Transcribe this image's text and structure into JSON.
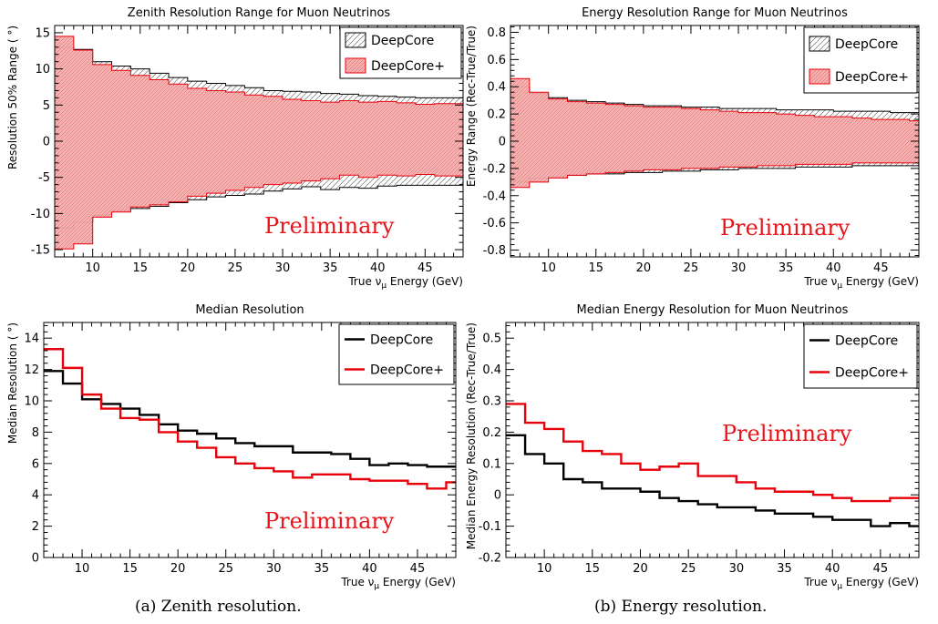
{
  "captions": [
    "(a) Zenith resolution.",
    "(b) Energy resolution."
  ],
  "colors": {
    "deepcore": "#000000",
    "deepcore_plus": "#e8000b",
    "band_plus_fill": "#f4a5a5",
    "preliminary": "#e8141a"
  },
  "chart_data": [
    {
      "type": "area",
      "title": "Zenith Resolution Range for Muon Neutrinos",
      "xlabel": "True ν_μ Energy (GeV)",
      "ylabel": "Resolution 50% Range ( °)",
      "xlim": [
        6,
        49
      ],
      "ylim": [
        -16,
        16
      ],
      "xticks": [
        10,
        15,
        20,
        25,
        30,
        35,
        40,
        45
      ],
      "yticks": [
        -15,
        -10,
        -5,
        0,
        5,
        10,
        15
      ],
      "annotation": "Preliminary",
      "legend": "top-right",
      "bin_edges": [
        6,
        8,
        10,
        12,
        14,
        16,
        18,
        20,
        22,
        24,
        26,
        28,
        30,
        32,
        34,
        36,
        38,
        40,
        42,
        44,
        46,
        48,
        49
      ],
      "series": [
        {
          "name": "DeepCore",
          "style": "hatch-black",
          "upper": [
            13.0,
            12.7,
            11.0,
            10.4,
            10.0,
            9.4,
            8.8,
            8.3,
            8.0,
            7.7,
            7.4,
            7.0,
            6.9,
            6.8,
            6.6,
            6.5,
            6.3,
            6.2,
            6.1,
            6.0,
            6.0,
            6.0
          ],
          "lower": [
            -12.0,
            -11.2,
            -10.3,
            -9.6,
            -9.3,
            -9.0,
            -8.5,
            -8.1,
            -7.7,
            -7.5,
            -7.3,
            -6.9,
            -6.6,
            -6.3,
            -6.7,
            -6.4,
            -6.5,
            -6.2,
            -6.1,
            -6.1,
            -6.1,
            -6.1
          ]
        },
        {
          "name": "DeepCore+",
          "style": "hatch-red",
          "upper": [
            14.5,
            12.6,
            10.6,
            9.8,
            9.1,
            8.5,
            7.9,
            7.3,
            7.0,
            6.8,
            6.4,
            6.2,
            5.8,
            5.6,
            5.4,
            5.6,
            5.4,
            5.5,
            5.3,
            5.1,
            5.2,
            5.2
          ],
          "lower": [
            -14.9,
            -14.2,
            -10.5,
            -9.8,
            -9.1,
            -8.8,
            -8.4,
            -7.6,
            -7.2,
            -6.8,
            -6.4,
            -6.0,
            -5.8,
            -5.5,
            -5.2,
            -4.7,
            -5.0,
            -4.7,
            -4.8,
            -4.6,
            -4.8,
            -4.8
          ]
        }
      ]
    },
    {
      "type": "area",
      "title": "Energy Resolution Range for Muon Neutrinos",
      "xlabel": "True ν_μ Energy (GeV)",
      "ylabel": "Energy Range (Rec-True/True)",
      "xlim": [
        6,
        49
      ],
      "ylim": [
        -0.85,
        0.85
      ],
      "xticks": [
        10,
        15,
        20,
        25,
        30,
        35,
        40,
        45
      ],
      "yticks": [
        -0.8,
        -0.6,
        -0.4,
        -0.2,
        0,
        0.2,
        0.4,
        0.6,
        0.8
      ],
      "annotation": "Preliminary",
      "legend": "top-right",
      "bin_edges": [
        6,
        8,
        10,
        12,
        14,
        16,
        18,
        20,
        22,
        24,
        26,
        28,
        30,
        32,
        34,
        36,
        38,
        40,
        42,
        44,
        46,
        48,
        49
      ],
      "series": [
        {
          "name": "DeepCore",
          "style": "hatch-black",
          "upper": [
            0.4,
            0.35,
            0.32,
            0.3,
            0.29,
            0.28,
            0.27,
            0.26,
            0.26,
            0.25,
            0.25,
            0.24,
            0.24,
            0.24,
            0.23,
            0.23,
            0.23,
            0.22,
            0.22,
            0.22,
            0.21,
            0.21
          ],
          "lower": [
            -0.3,
            -0.27,
            -0.26,
            -0.25,
            -0.24,
            -0.24,
            -0.23,
            -0.23,
            -0.22,
            -0.22,
            -0.21,
            -0.21,
            -0.2,
            -0.2,
            -0.2,
            -0.19,
            -0.19,
            -0.19,
            -0.18,
            -0.18,
            -0.18,
            -0.18
          ]
        },
        {
          "name": "DeepCore+",
          "style": "hatch-red",
          "upper": [
            0.46,
            0.36,
            0.31,
            0.29,
            0.28,
            0.27,
            0.26,
            0.25,
            0.25,
            0.24,
            0.23,
            0.22,
            0.21,
            0.21,
            0.2,
            0.19,
            0.18,
            0.18,
            0.17,
            0.16,
            0.16,
            0.15
          ],
          "lower": [
            -0.34,
            -0.3,
            -0.27,
            -0.25,
            -0.24,
            -0.23,
            -0.22,
            -0.21,
            -0.21,
            -0.2,
            -0.2,
            -0.19,
            -0.19,
            -0.18,
            -0.18,
            -0.17,
            -0.17,
            -0.17,
            -0.16,
            -0.16,
            -0.16,
            -0.16
          ]
        }
      ]
    },
    {
      "type": "line",
      "title": "Median Resolution",
      "xlabel": "True ν_μ Energy (GeV)",
      "ylabel": "Median Resolution ( °)",
      "xlim": [
        6,
        49
      ],
      "ylim": [
        0,
        15
      ],
      "xticks": [
        10,
        15,
        20,
        25,
        30,
        35,
        40,
        45
      ],
      "yticks": [
        0,
        2,
        4,
        6,
        8,
        10,
        12,
        14
      ],
      "annotation": "Preliminary",
      "legend": "top-right",
      "bin_edges": [
        6,
        8,
        10,
        12,
        14,
        16,
        18,
        20,
        22,
        24,
        26,
        28,
        30,
        32,
        34,
        36,
        38,
        40,
        42,
        44,
        46,
        48,
        49
      ],
      "series": [
        {
          "name": "DeepCore",
          "style": "step-black",
          "values": [
            11.9,
            11.1,
            10.1,
            9.8,
            9.5,
            9.1,
            8.5,
            8.1,
            7.9,
            7.6,
            7.3,
            7.1,
            7.1,
            6.7,
            6.7,
            6.6,
            6.3,
            5.9,
            6.0,
            5.9,
            5.8,
            5.8
          ]
        },
        {
          "name": "DeepCore+",
          "style": "step-red",
          "values": [
            13.3,
            12.1,
            10.4,
            9.5,
            8.9,
            8.8,
            8.0,
            7.4,
            7.0,
            6.4,
            6.0,
            5.7,
            5.5,
            5.1,
            5.3,
            5.3,
            5.0,
            4.9,
            4.9,
            4.7,
            4.4,
            4.8
          ]
        }
      ]
    },
    {
      "type": "line",
      "title": "Median Energy Resolution for Muon Neutrinos",
      "xlabel": "True ν_μ Energy (GeV)",
      "ylabel": "Median Energy Resolution (Rec-True/True)",
      "xlim": [
        6,
        49
      ],
      "ylim": [
        -0.2,
        0.55
      ],
      "xticks": [
        10,
        15,
        20,
        25,
        30,
        35,
        40,
        45
      ],
      "yticks": [
        -0.2,
        -0.1,
        0,
        0.1,
        0.2,
        0.3,
        0.4,
        0.5
      ],
      "annotation": "Preliminary",
      "legend": "top-right",
      "bin_edges": [
        6,
        8,
        10,
        12,
        14,
        16,
        18,
        20,
        22,
        24,
        26,
        28,
        30,
        32,
        34,
        36,
        38,
        40,
        42,
        44,
        46,
        48,
        49
      ],
      "series": [
        {
          "name": "DeepCore",
          "style": "step-black",
          "values": [
            0.19,
            0.13,
            0.1,
            0.05,
            0.04,
            0.02,
            0.02,
            0.01,
            -0.01,
            -0.02,
            -0.03,
            -0.04,
            -0.04,
            -0.05,
            -0.06,
            -0.06,
            -0.07,
            -0.08,
            -0.08,
            -0.1,
            -0.09,
            -0.1
          ]
        },
        {
          "name": "DeepCore+",
          "style": "step-red",
          "values": [
            0.29,
            0.23,
            0.21,
            0.17,
            0.14,
            0.13,
            0.1,
            0.08,
            0.09,
            0.1,
            0.06,
            0.06,
            0.04,
            0.02,
            0.01,
            0.01,
            0.0,
            -0.01,
            -0.02,
            -0.02,
            -0.01,
            -0.01
          ]
        }
      ]
    }
  ]
}
